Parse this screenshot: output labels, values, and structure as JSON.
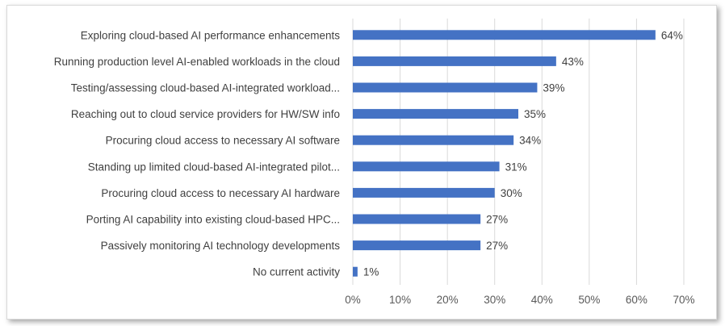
{
  "chart_data": {
    "type": "bar",
    "orientation": "horizontal",
    "categories": [
      "Exploring cloud-based AI performance enhancements",
      "Running production level AI-enabled workloads in the cloud",
      "Testing/assessing cloud-based AI-integrated workload...",
      "Reaching out to cloud service providers for HW/SW info",
      "Procuring cloud access to necessary AI software",
      "Standing up limited cloud-based AI-integrated pilot...",
      "Procuring cloud access to necessary AI hardware",
      "Porting AI capability into existing cloud-based HPC...",
      "Passively monitoring AI technology developments",
      "No current activity"
    ],
    "values": [
      64,
      43,
      39,
      35,
      34,
      31,
      30,
      27,
      27,
      1
    ],
    "value_labels": [
      "64%",
      "43%",
      "39%",
      "35%",
      "34%",
      "31%",
      "30%",
      "27%",
      "27%",
      "1%"
    ],
    "x_ticks": [
      "0%",
      "10%",
      "20%",
      "30%",
      "40%",
      "50%",
      "60%",
      "70%"
    ],
    "xlim": [
      0,
      70
    ],
    "grid": "vertical",
    "legend": "none",
    "title": "",
    "xlabel": "",
    "ylabel": "",
    "colors": {
      "bar": "#4472c4",
      "grid": "#d9d9d9",
      "text": "#404040"
    }
  }
}
